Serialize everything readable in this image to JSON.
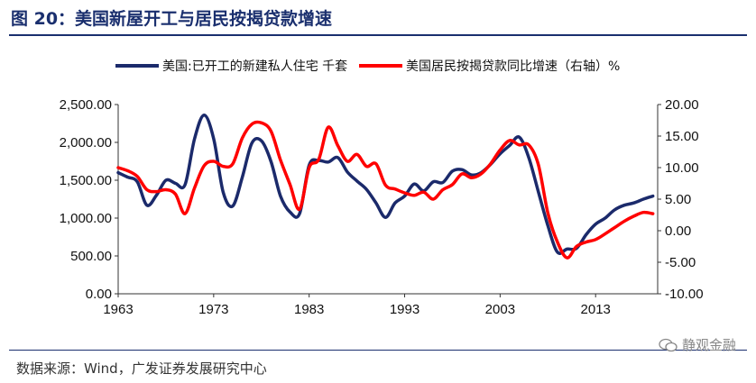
{
  "header": {
    "title": "图 20：美国新屋开工与居民按揭贷款增速"
  },
  "footer": {
    "source": "数据来源：Wind，广发证券发展研究中心",
    "watermark": "静观金融"
  },
  "chart_data": {
    "type": "line",
    "title": "图 20：美国新屋开工与居民按揭贷款增速",
    "x_ticks": [
      "1963",
      "1973",
      "1983",
      "1993",
      "2003",
      "2013"
    ],
    "y_left": {
      "ticks": [
        "0.00",
        "500.00",
        "1,000.00",
        "1,500.00",
        "2,000.00",
        "2,500.00"
      ],
      "range": [
        0,
        2500
      ]
    },
    "y_right": {
      "ticks": [
        "-10.00",
        "-5.00",
        "0.00",
        "5.00",
        "10.00",
        "15.00",
        "20.00"
      ],
      "range": [
        -10,
        20
      ]
    },
    "legend_placement": "top",
    "series": [
      {
        "name": "美国:已开工的新建私人住宅 千套",
        "axis": "left",
        "color": "#1b2a6b",
        "x": [
          1963,
          1964,
          1965,
          1966,
          1967,
          1968,
          1969,
          1970,
          1971,
          1972,
          1973,
          1974,
          1975,
          1976,
          1977,
          1978,
          1979,
          1980,
          1981,
          1982,
          1983,
          1984,
          1985,
          1986,
          1987,
          1988,
          1989,
          1990,
          1991,
          1992,
          1993,
          1994,
          1995,
          1996,
          1997,
          1998,
          1999,
          2000,
          2001,
          2002,
          2003,
          2004,
          2005,
          2006,
          2007,
          2008,
          2009,
          2010,
          2011,
          2012,
          2013,
          2014,
          2015,
          2016,
          2017,
          2018,
          2019
        ],
        "values": [
          1600,
          1540,
          1480,
          1170,
          1300,
          1500,
          1460,
          1440,
          2050,
          2360,
          2050,
          1340,
          1160,
          1540,
          1990,
          2020,
          1750,
          1290,
          1080,
          1060,
          1700,
          1760,
          1740,
          1800,
          1610,
          1490,
          1380,
          1200,
          1010,
          1200,
          1290,
          1450,
          1360,
          1480,
          1470,
          1620,
          1640,
          1570,
          1600,
          1710,
          1850,
          1960,
          2070,
          1800,
          1350,
          900,
          550,
          590,
          600,
          780,
          920,
          1000,
          1110,
          1170,
          1200,
          1250,
          1290
        ]
      },
      {
        "name": "美国居民按揭贷款同比增速（右轴）%",
        "axis": "right",
        "color": "#ff0000",
        "x": [
          1963,
          1964,
          1965,
          1966,
          1967,
          1968,
          1969,
          1970,
          1971,
          1972,
          1973,
          1974,
          1975,
          1976,
          1977,
          1978,
          1979,
          1980,
          1981,
          1982,
          1983,
          1984,
          1985,
          1986,
          1987,
          1988,
          1989,
          1990,
          1991,
          1992,
          1993,
          1994,
          1995,
          1996,
          1997,
          1998,
          1999,
          2000,
          2001,
          2002,
          2003,
          2004,
          2005,
          2006,
          2007,
          2008,
          2009,
          2010,
          2011,
          2012,
          2013,
          2014,
          2015,
          2016,
          2017,
          2018,
          2019
        ],
        "values": [
          10.0,
          9.5,
          8.6,
          6.5,
          6.2,
          6.5,
          5.8,
          2.7,
          6.8,
          10.3,
          11.0,
          10.2,
          10.6,
          14.7,
          16.9,
          17.1,
          15.8,
          11.2,
          7.3,
          3.4,
          10.0,
          11.3,
          16.4,
          13.5,
          11.0,
          12.1,
          10.2,
          10.6,
          7.2,
          6.6,
          6.0,
          5.6,
          6.1,
          5.0,
          6.5,
          7.3,
          9.0,
          8.4,
          9.0,
          10.6,
          12.8,
          14.3,
          13.6,
          13.6,
          10.5,
          2.8,
          -1.8,
          -4.3,
          -2.5,
          -1.8,
          -1.4,
          -0.5,
          0.5,
          1.5,
          2.3,
          2.9,
          2.7
        ]
      }
    ]
  }
}
